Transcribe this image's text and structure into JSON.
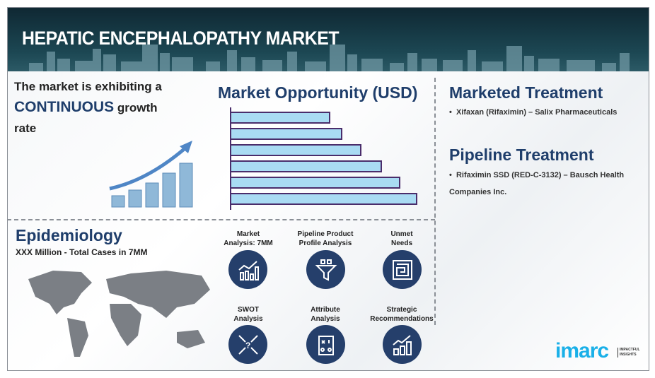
{
  "header": {
    "title": "HEPATIC ENCEPHALOPATHY MARKET"
  },
  "growth": {
    "line1": "The market is exhibiting a",
    "emphasis": "CONTINUOUS",
    "line2": "growth",
    "line3": "rate"
  },
  "opportunity": {
    "title": "Market Opportunity (USD)"
  },
  "marketed": {
    "title": "Marketed Treatment",
    "items": [
      "Xifaxan (Rifaximin) – Salix Pharmaceuticals"
    ]
  },
  "pipeline": {
    "title": "Pipeline Treatment",
    "items": [
      "Rifaximin SSD (RED-C-3132) – Bausch Health Companies Inc."
    ]
  },
  "epidemiology": {
    "title": "Epidemiology",
    "subtitle": "XXX Million - Total Cases in 7MM"
  },
  "services": [
    {
      "line1": "Market",
      "line2": "Analysis: 7MM",
      "icon": "chart-icon"
    },
    {
      "line1": "Pipeline Product",
      "line2": "Profile Analysis",
      "icon": "funnel-icon"
    },
    {
      "line1": "Unmet",
      "line2": "Needs",
      "icon": "maze-icon"
    },
    {
      "line1": "SWOT",
      "line2": "Analysis",
      "icon": "swot-icon"
    },
    {
      "line1": "Attribute",
      "line2": "Analysis",
      "icon": "clipboard-icon"
    },
    {
      "line1": "Strategic",
      "line2": "Recommendations",
      "icon": "growth-icon"
    }
  ],
  "logo": {
    "name": "imarc",
    "tagline1": "IMPACTFUL",
    "tagline2": "INSIGHTS"
  },
  "colors": {
    "navy": "#253f6b",
    "bar_fill": "#a9dbf3",
    "bar_border": "#4a2d6b",
    "brand": "#1ab0e8"
  }
}
